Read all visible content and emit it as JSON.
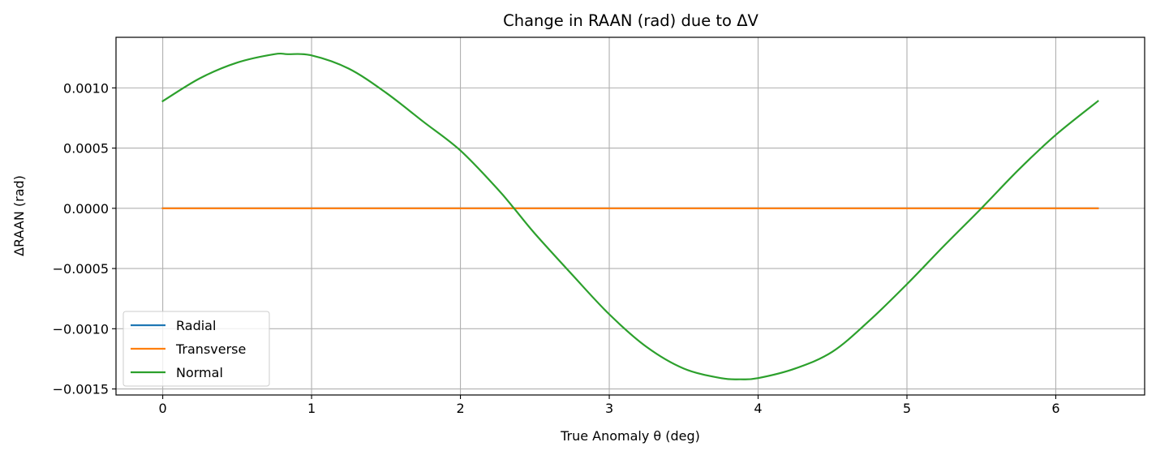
{
  "chart_data": {
    "type": "line",
    "title": "Change in RAAN (rad) due to ΔV",
    "xlabel": "True Anomaly θ (deg)",
    "ylabel": "ΔRAAN (rad)",
    "xlim": [
      -0.314,
      6.597
    ],
    "ylim": [
      -0.00155,
      0.00142
    ],
    "xticks": [
      0,
      1,
      2,
      3,
      4,
      5,
      6
    ],
    "xtick_labels": [
      "0",
      "1",
      "2",
      "3",
      "4",
      "5",
      "6"
    ],
    "yticks": [
      0.001,
      0.0005,
      0,
      -0.0005,
      -0.001,
      -0.0015
    ],
    "ytick_labels": [
      "0.0010",
      "0.0005",
      "0.0000",
      "−0.0005",
      "−0.0010",
      "−0.0015"
    ],
    "grid": true,
    "legend_position": "lower-left",
    "x": [
      0,
      0.25,
      0.5,
      0.75,
      0.84,
      1.0,
      1.25,
      1.5,
      1.75,
      2.0,
      2.25,
      2.36,
      2.5,
      2.75,
      3.0,
      3.25,
      3.5,
      3.75,
      3.88,
      4.0,
      4.25,
      4.5,
      4.75,
      5.0,
      5.25,
      5.5,
      5.75,
      6.0,
      6.283
    ],
    "series": [
      {
        "name": "Radial",
        "color": "#1f77b4",
        "values": [
          0,
          0,
          0,
          0,
          0,
          0,
          0,
          0,
          0,
          0,
          0,
          0,
          0,
          0,
          0,
          0,
          0,
          0,
          0,
          0,
          0,
          0,
          0,
          0,
          0,
          0,
          0,
          0,
          0
        ]
      },
      {
        "name": "Transverse",
        "color": "#ff7f0e",
        "values": [
          0,
          0,
          0,
          0,
          0,
          0,
          0,
          0,
          0,
          0,
          0,
          0,
          0,
          0,
          0,
          0,
          0,
          0,
          0,
          0,
          0,
          0,
          0,
          0,
          0,
          0,
          0,
          0,
          0
        ]
      },
      {
        "name": "Normal",
        "color": "#2ca02c",
        "values": [
          0.00089,
          0.00108,
          0.00121,
          0.00128,
          0.00128,
          0.00127,
          0.00116,
          0.00096,
          0.00072,
          0.00048,
          0.00016,
          0.0,
          -0.00021,
          -0.00055,
          -0.00088,
          -0.00115,
          -0.00133,
          -0.00141,
          -0.00142,
          -0.00141,
          -0.00133,
          -0.00119,
          -0.00093,
          -0.00063,
          -0.00031,
          0.0,
          0.00032,
          0.00061,
          0.00089
        ]
      }
    ]
  }
}
